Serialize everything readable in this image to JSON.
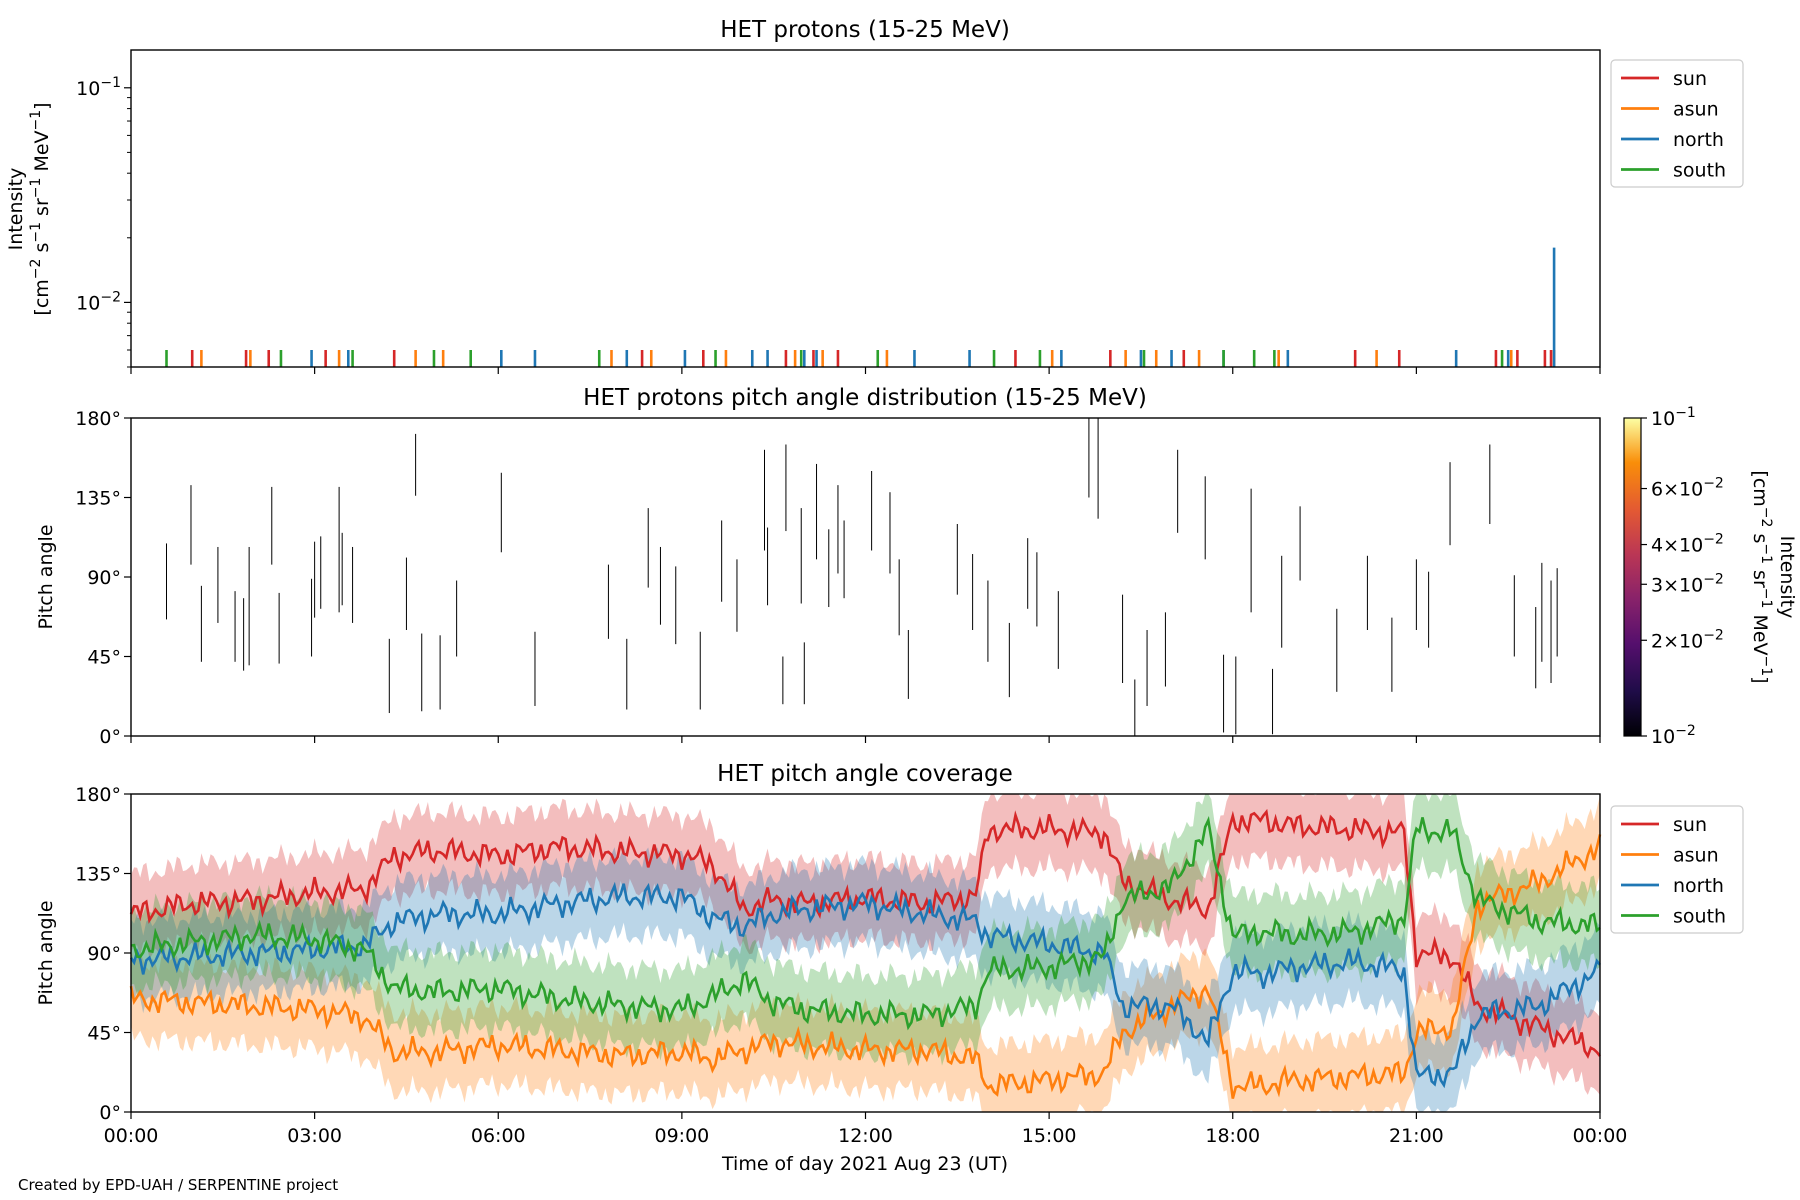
{
  "footer": {
    "credit": "Created by EPD-UAH / SERPENTINE project"
  },
  "colors": {
    "sun": "#d62728",
    "asun": "#ff7f0e",
    "north": "#1f77b4",
    "south": "#2ca02c",
    "axis": "#000000"
  },
  "chart_data": [
    {
      "type": "bar",
      "title": "HET protons (15-25 MeV)",
      "ylabel": "Intensity",
      "ylabel_units": "[cm$^{-2}$ s$^{-1}$ sr$^{-1}$ MeV$^{-1}$]",
      "yscale": "log",
      "ylim": [
        0.005,
        0.15
      ],
      "ytick_labels": [
        "10^-2",
        "10^-1"
      ],
      "xlim_hours": [
        0,
        24
      ],
      "legend_position": "outside-right-top",
      "legend": [
        "sun",
        "asun",
        "north",
        "south"
      ],
      "series": [
        {
          "name": "sun",
          "x_hours": [
            1.0,
            1.88,
            2.25,
            3.18,
            4.3,
            8.35,
            9.35,
            10.7,
            11.15,
            11.55,
            14.45,
            16.0,
            17.2,
            20.0,
            20.72,
            22.3,
            22.65,
            23.1,
            23.2
          ],
          "values": [
            0.006,
            0.006,
            0.006,
            0.006,
            0.006,
            0.006,
            0.006,
            0.006,
            0.006,
            0.006,
            0.006,
            0.006,
            0.006,
            0.006,
            0.006,
            0.006,
            0.006,
            0.006,
            0.006
          ]
        },
        {
          "name": "asun",
          "x_hours": [
            1.15,
            1.95,
            3.4,
            4.65,
            5.1,
            7.85,
            8.5,
            9.72,
            10.85,
            11.3,
            12.35,
            15.05,
            16.25,
            16.75,
            17.45,
            18.75,
            20.35,
            22.55,
            23.25
          ],
          "values": [
            0.006,
            0.006,
            0.006,
            0.006,
            0.006,
            0.006,
            0.006,
            0.006,
            0.006,
            0.006,
            0.006,
            0.006,
            0.006,
            0.006,
            0.006,
            0.006,
            0.006,
            0.006,
            0.006
          ]
        },
        {
          "name": "north",
          "x_hours": [
            2.95,
            3.55,
            6.05,
            6.6,
            8.1,
            9.05,
            10.15,
            10.4,
            11.0,
            11.2,
            12.8,
            13.7,
            15.2,
            16.5,
            17.0,
            17.85,
            18.9,
            21.65,
            22.5,
            23.25
          ],
          "values": [
            0.006,
            0.006,
            0.006,
            0.006,
            0.006,
            0.006,
            0.006,
            0.006,
            0.006,
            0.006,
            0.006,
            0.006,
            0.006,
            0.006,
            0.006,
            0.006,
            0.006,
            0.006,
            0.006,
            0.018
          ]
        },
        {
          "name": "south",
          "x_hours": [
            0.58,
            2.45,
            3.62,
            4.95,
            5.55,
            7.65,
            9.55,
            10.95,
            12.2,
            14.1,
            14.85,
            16.55,
            17.85,
            18.35,
            18.68,
            22.4
          ],
          "values": [
            0.006,
            0.006,
            0.006,
            0.006,
            0.006,
            0.006,
            0.006,
            0.006,
            0.006,
            0.006,
            0.006,
            0.006,
            0.006,
            0.006,
            0.006,
            0.006
          ]
        }
      ]
    },
    {
      "type": "heatmap",
      "title": "HET protons pitch angle distribution (15-25 MeV)",
      "ylabel": "Pitch angle",
      "ylim": [
        0,
        180
      ],
      "ytick_labels": [
        "0°",
        "45°",
        "90°",
        "135°",
        "180°"
      ],
      "xlim_hours": [
        0,
        24
      ],
      "colorbar": {
        "label": "Intensity",
        "units": "[cm$^{-2}$ s$^{-1}$ sr$^{-1}$ MeV$^{-1}$]",
        "scale": "log",
        "range": [
          0.01,
          0.1
        ],
        "tick_labels": [
          "10^-2",
          "2×10^-2",
          "3×10^-2",
          "4×10^-2",
          "6×10^-2",
          "10^-1"
        ],
        "colormap": "inferno"
      },
      "segments": [
        [
          0.58,
          66,
          109
        ],
        [
          0.98,
          97,
          142
        ],
        [
          1.15,
          42,
          85
        ],
        [
          1.42,
          64,
          107
        ],
        [
          1.7,
          42,
          82
        ],
        [
          1.84,
          37,
          78
        ],
        [
          1.93,
          40,
          107
        ],
        [
          2.3,
          97,
          141
        ],
        [
          2.42,
          41,
          81
        ],
        [
          2.95,
          45,
          89
        ],
        [
          3.0,
          67,
          110
        ],
        [
          3.1,
          72,
          113
        ],
        [
          3.4,
          70,
          141
        ],
        [
          3.45,
          74,
          115
        ],
        [
          3.62,
          64,
          107
        ],
        [
          4.22,
          13,
          55
        ],
        [
          4.5,
          60,
          101
        ],
        [
          4.65,
          136,
          171
        ],
        [
          4.75,
          14,
          58
        ],
        [
          5.05,
          15,
          57
        ],
        [
          5.32,
          45,
          88
        ],
        [
          6.05,
          104,
          149
        ],
        [
          6.6,
          17,
          59
        ],
        [
          7.8,
          55,
          97
        ],
        [
          8.1,
          15,
          55
        ],
        [
          8.45,
          84,
          129
        ],
        [
          8.65,
          63,
          107
        ],
        [
          8.9,
          52,
          96
        ],
        [
          9.3,
          15,
          59
        ],
        [
          9.65,
          76,
          122
        ],
        [
          9.9,
          59,
          100
        ],
        [
          10.35,
          105,
          162
        ],
        [
          10.4,
          74,
          118
        ],
        [
          10.65,
          18,
          45
        ],
        [
          10.7,
          116,
          165
        ],
        [
          10.95,
          75,
          129
        ],
        [
          11.0,
          18,
          53
        ],
        [
          11.2,
          100,
          154
        ],
        [
          11.4,
          73,
          117
        ],
        [
          11.55,
          92,
          142
        ],
        [
          11.65,
          78,
          122
        ],
        [
          12.1,
          105,
          150
        ],
        [
          12.4,
          92,
          138
        ],
        [
          12.55,
          57,
          100
        ],
        [
          12.7,
          21,
          60
        ],
        [
          13.5,
          80,
          120
        ],
        [
          13.75,
          60,
          103
        ],
        [
          14.0,
          42,
          88
        ],
        [
          14.35,
          22,
          64
        ],
        [
          14.65,
          72,
          112
        ],
        [
          14.8,
          62,
          104
        ],
        [
          15.15,
          38,
          82
        ],
        [
          15.65,
          135,
          180
        ],
        [
          15.8,
          123,
          180
        ],
        [
          16.2,
          30,
          80
        ],
        [
          16.4,
          0,
          32
        ],
        [
          16.6,
          17,
          60
        ],
        [
          16.9,
          28,
          70
        ],
        [
          17.1,
          115,
          162
        ],
        [
          17.55,
          100,
          147
        ],
        [
          17.85,
          2,
          46
        ],
        [
          18.05,
          1,
          45
        ],
        [
          18.3,
          70,
          140
        ],
        [
          18.65,
          1,
          38
        ],
        [
          18.8,
          50,
          102
        ],
        [
          19.1,
          88,
          130
        ],
        [
          19.7,
          25,
          72
        ],
        [
          20.2,
          60,
          102
        ],
        [
          20.6,
          25,
          67
        ],
        [
          21.0,
          60,
          100
        ],
        [
          21.2,
          50,
          93
        ],
        [
          21.55,
          108,
          155
        ],
        [
          22.2,
          120,
          165
        ],
        [
          22.6,
          45,
          91
        ],
        [
          22.95,
          27,
          73
        ],
        [
          23.05,
          42,
          98
        ],
        [
          23.2,
          30,
          88
        ],
        [
          23.3,
          45,
          95
        ]
      ]
    },
    {
      "type": "area",
      "title": "HET pitch angle coverage",
      "ylabel": "Pitch angle",
      "xlabel": "Time of day 2021 Aug 23 (UT)",
      "ylim": [
        0,
        180
      ],
      "ytick_labels": [
        "0°",
        "45°",
        "90°",
        "135°",
        "180°"
      ],
      "x_tick_labels": [
        "00:00",
        "03:00",
        "06:00",
        "09:00",
        "12:00",
        "15:00",
        "18:00",
        "21:00",
        "00:00"
      ],
      "x_hours": [
        0,
        3,
        6,
        9,
        12,
        15,
        18,
        21,
        24
      ],
      "legend_position": "outside-right-top",
      "legend": [
        "sun",
        "asun",
        "north",
        "south"
      ],
      "band_halfwidth_deg": 22,
      "series": [
        {
          "name": "sun",
          "knots_hours": [
            0,
            1,
            2,
            3,
            3.8,
            4.3,
            5,
            6,
            7,
            8,
            9,
            9.5,
            10,
            10.5,
            11,
            12,
            13,
            13.8,
            14,
            15,
            15.9,
            16.2,
            17,
            17.6,
            18,
            18.5,
            19,
            20,
            20.8,
            21,
            21.6,
            22,
            23,
            24
          ],
          "knots_deg": [
            112,
            118,
            120,
            124,
            126,
            145,
            148,
            145,
            150,
            147,
            146,
            140,
            115,
            120,
            118,
            121,
            118,
            122,
            160,
            160,
            158,
            130,
            120,
            115,
            165,
            165,
            162,
            160,
            158,
            90,
            88,
            60,
            48,
            35
          ]
        },
        {
          "name": "asun",
          "knots_hours": [
            0,
            1,
            2,
            3,
            3.8,
            4.3,
            5,
            6,
            7,
            8,
            9,
            9.5,
            10,
            10.5,
            11,
            12,
            13,
            13.8,
            14,
            15,
            15.9,
            16.2,
            17,
            17.6,
            18,
            18.5,
            19,
            20,
            20.8,
            21,
            21.6,
            22,
            23,
            24
          ],
          "knots_deg": [
            64,
            62,
            60,
            58,
            54,
            34,
            34,
            38,
            35,
            32,
            34,
            30,
            35,
            40,
            38,
            35,
            35,
            30,
            15,
            18,
            22,
            45,
            60,
            70,
            15,
            15,
            18,
            20,
            22,
            45,
            48,
            118,
            130,
            150
          ]
        },
        {
          "name": "north",
          "knots_hours": [
            0,
            1,
            2,
            3,
            3.8,
            4.3,
            5,
            6,
            7,
            8,
            9,
            9.5,
            10,
            10.5,
            11,
            12,
            13,
            13.8,
            14,
            15,
            15.9,
            16.2,
            17,
            17.6,
            18,
            18.5,
            19,
            20,
            20.8,
            21,
            21.6,
            22,
            23,
            24
          ],
          "knots_deg": [
            86,
            88,
            90,
            92,
            94,
            108,
            112,
            112,
            118,
            122,
            122,
            110,
            105,
            112,
            115,
            118,
            112,
            108,
            100,
            95,
            90,
            60,
            60,
            40,
            80,
            78,
            82,
            85,
            80,
            20,
            22,
            55,
            60,
            80
          ]
        },
        {
          "name": "south",
          "knots_hours": [
            0,
            1,
            2,
            3,
            3.8,
            4.3,
            5,
            6,
            7,
            8,
            9,
            9.5,
            10,
            10.5,
            11,
            12,
            13,
            13.8,
            14,
            15,
            15.9,
            16.2,
            17,
            17.6,
            18,
            18.5,
            19,
            20,
            20.8,
            21,
            21.6,
            22,
            23,
            24
          ],
          "knots_deg": [
            92,
            96,
            100,
            98,
            92,
            70,
            68,
            70,
            64,
            60,
            58,
            65,
            75,
            62,
            58,
            55,
            55,
            60,
            80,
            82,
            88,
            120,
            128,
            160,
            100,
            102,
            100,
            102,
            110,
            160,
            158,
            120,
            108,
            105
          ]
        }
      ]
    }
  ]
}
